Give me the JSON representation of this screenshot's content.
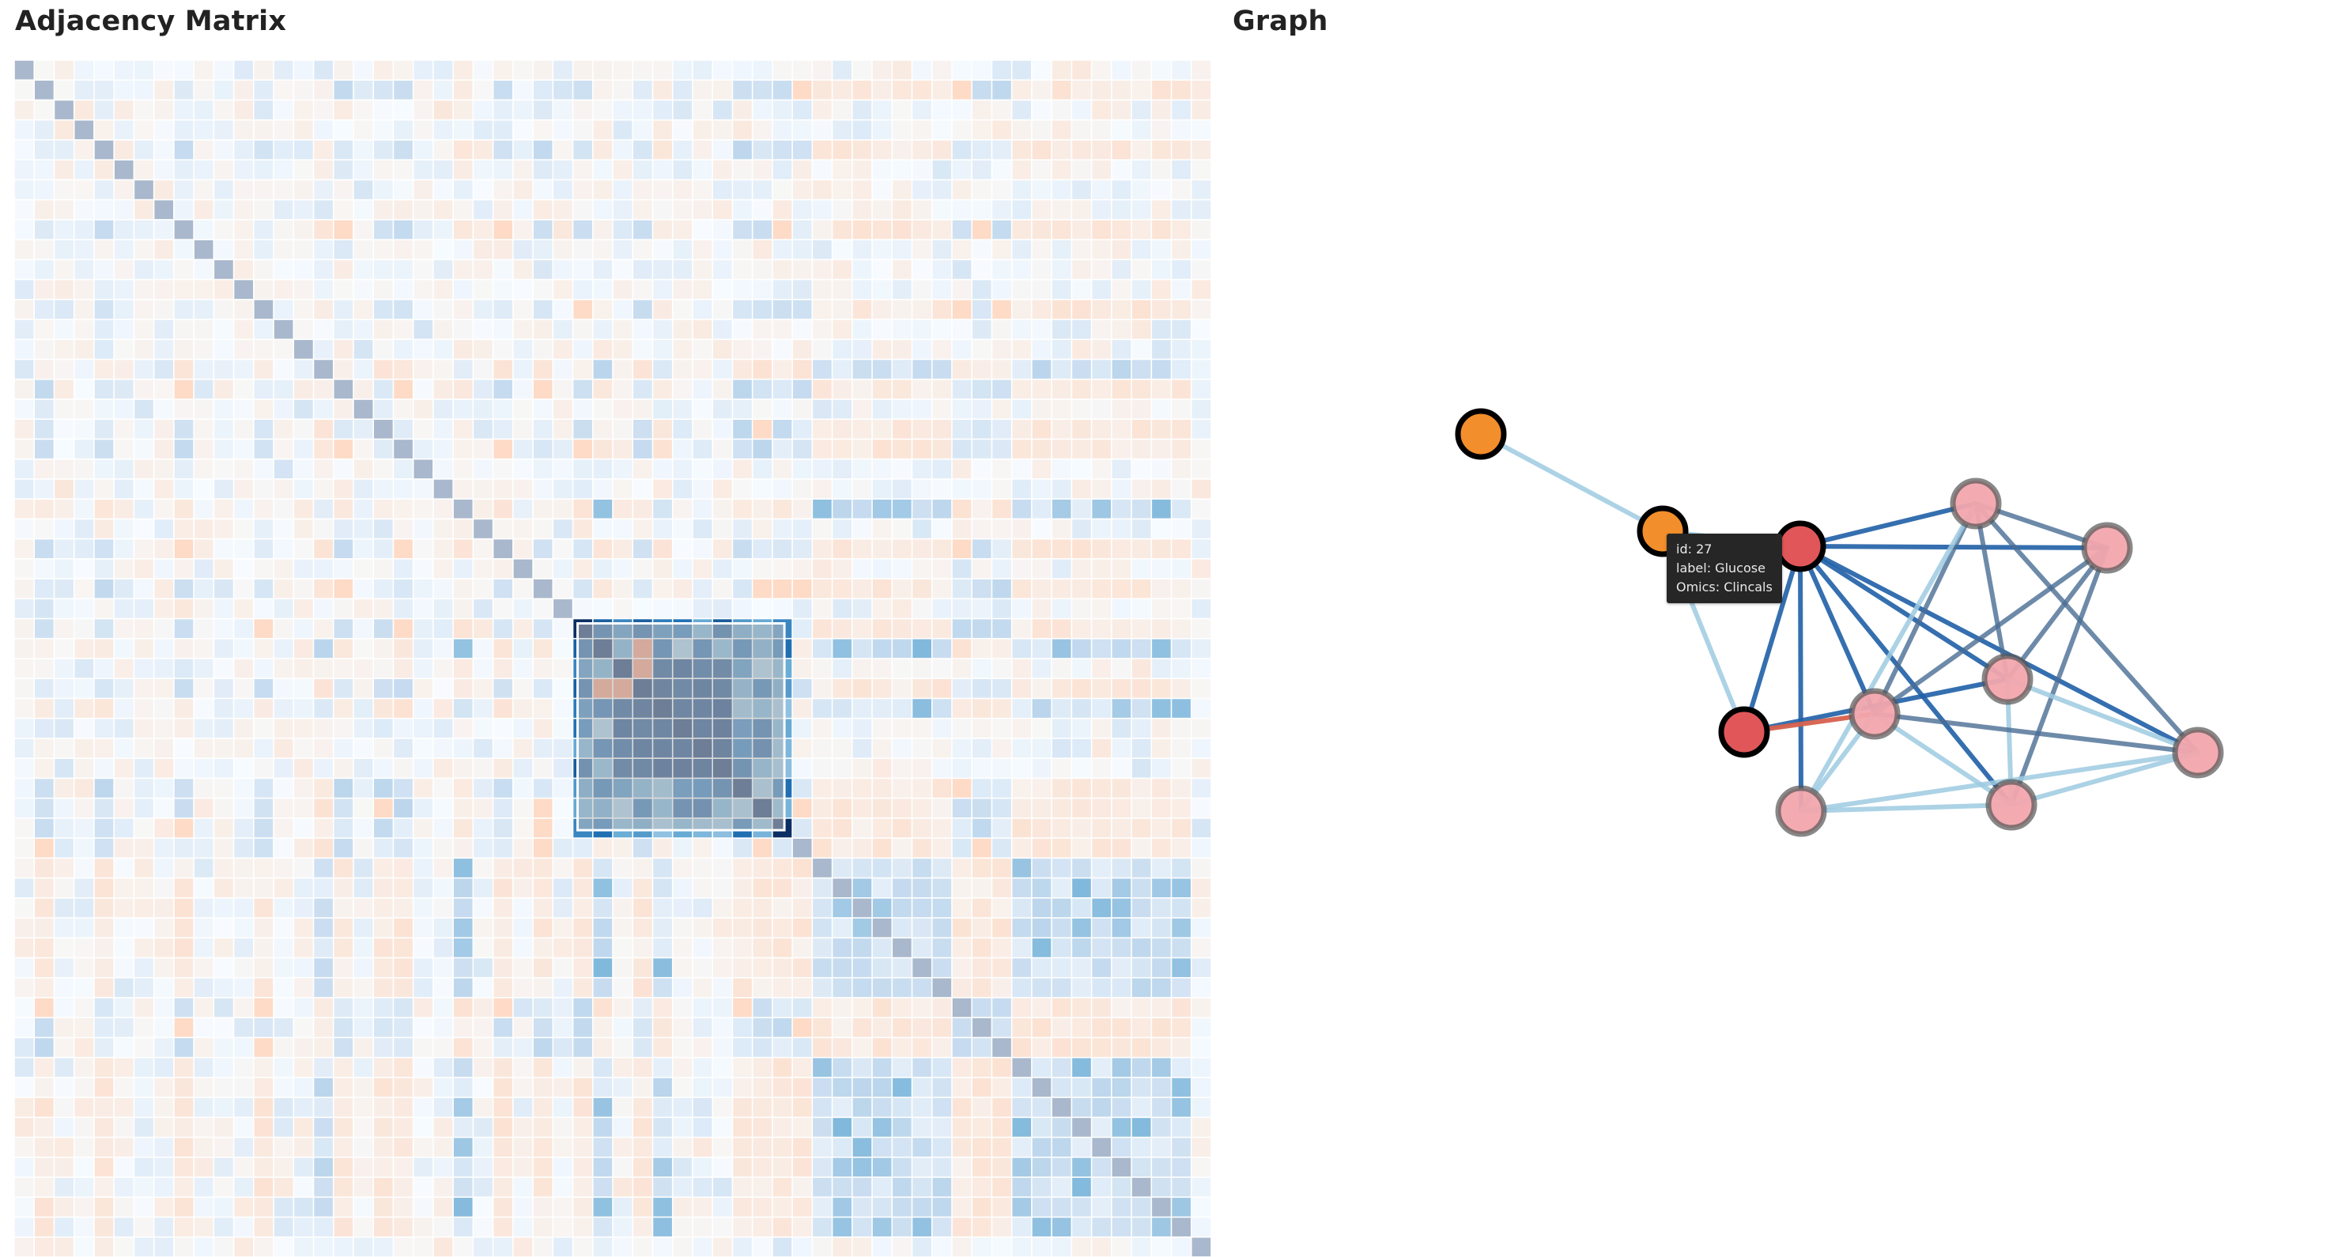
{
  "matrix_panel": {
    "title": "Adjacency Matrix",
    "size": 60,
    "selected_range": [
      28,
      38
    ],
    "colors": {
      "positive_dark": "#08306b",
      "positive_mid": "#4682b4",
      "positive_light": "#c6dbef",
      "negative": "#d6604d",
      "negative_light": "#fddbc7",
      "neutral": "#f7f7f7",
      "selection_overlay": "#c0c0c0",
      "selection_border": "#ffffff"
    }
  },
  "graph_panel": {
    "title": "Graph",
    "colors": {
      "node_orange": "#f28e2b",
      "node_red": "#e15759",
      "node_pink": "#f2a6ad",
      "edge_blue_dark": "#1f5fa6",
      "edge_blue_light": "#9ecae1",
      "edge_slate": "#4a6d94",
      "edge_red": "#d6604d"
    },
    "nodes": [
      {
        "key": "n0",
        "type": "orange-highlight"
      },
      {
        "key": "n1",
        "type": "orange-highlight"
      },
      {
        "key": "n2",
        "type": "red-highlight"
      },
      {
        "key": "n3",
        "type": "red-highlight"
      },
      {
        "key": "n4",
        "type": "pink-faded"
      },
      {
        "key": "n5",
        "type": "pink-faded"
      },
      {
        "key": "n6",
        "type": "pink-faded"
      },
      {
        "key": "n7",
        "type": "pink-faded"
      },
      {
        "key": "n8",
        "type": "pink-faded"
      },
      {
        "key": "n9",
        "type": "pink-faded"
      },
      {
        "key": "n10",
        "type": "pink-faded"
      }
    ],
    "edges": [
      {
        "source": "n0",
        "target": "n1",
        "style": "light-blue"
      },
      {
        "source": "n1",
        "target": "n2",
        "style": "light-blue"
      },
      {
        "source": "n1",
        "target": "n3",
        "style": "light-blue"
      },
      {
        "source": "n2",
        "target": "n4",
        "style": "dark-blue"
      },
      {
        "source": "n2",
        "target": "n5",
        "style": "dark-blue"
      },
      {
        "source": "n2",
        "target": "n6",
        "style": "dark-blue"
      },
      {
        "source": "n2",
        "target": "n7",
        "style": "dark-blue"
      },
      {
        "source": "n2",
        "target": "n8",
        "style": "dark-blue"
      },
      {
        "source": "n2",
        "target": "n9",
        "style": "dark-blue"
      },
      {
        "source": "n2",
        "target": "n10",
        "style": "dark-blue"
      },
      {
        "source": "n2",
        "target": "n3",
        "style": "dark-blue"
      },
      {
        "source": "n3",
        "target": "n7",
        "style": "dark-blue"
      },
      {
        "source": "n3",
        "target": "n8",
        "style": "red"
      },
      {
        "source": "n4",
        "target": "n7",
        "style": "slate"
      },
      {
        "source": "n4",
        "target": "n8",
        "style": "slate"
      },
      {
        "source": "n4",
        "target": "n10",
        "style": "slate"
      },
      {
        "source": "n5",
        "target": "n7",
        "style": "slate"
      },
      {
        "source": "n5",
        "target": "n8",
        "style": "slate"
      },
      {
        "source": "n5",
        "target": "n9",
        "style": "slate"
      },
      {
        "source": "n6",
        "target": "n4",
        "style": "light-blue"
      },
      {
        "source": "n6",
        "target": "n8",
        "style": "light-blue"
      },
      {
        "source": "n6",
        "target": "n9",
        "style": "light-blue"
      },
      {
        "source": "n6",
        "target": "n10",
        "style": "light-blue"
      },
      {
        "source": "n7",
        "target": "n9",
        "style": "light-blue"
      },
      {
        "source": "n7",
        "target": "n10",
        "style": "light-blue"
      },
      {
        "source": "n8",
        "target": "n9",
        "style": "light-blue"
      },
      {
        "source": "n8",
        "target": "n10",
        "style": "slate"
      },
      {
        "source": "n4",
        "target": "n5",
        "style": "slate"
      },
      {
        "source": "n9",
        "target": "n10",
        "style": "light-blue"
      }
    ],
    "tooltip": {
      "id_line": "id: 27",
      "label_line": "label: Glucose",
      "omics_line": "Omics: Clincals"
    }
  }
}
